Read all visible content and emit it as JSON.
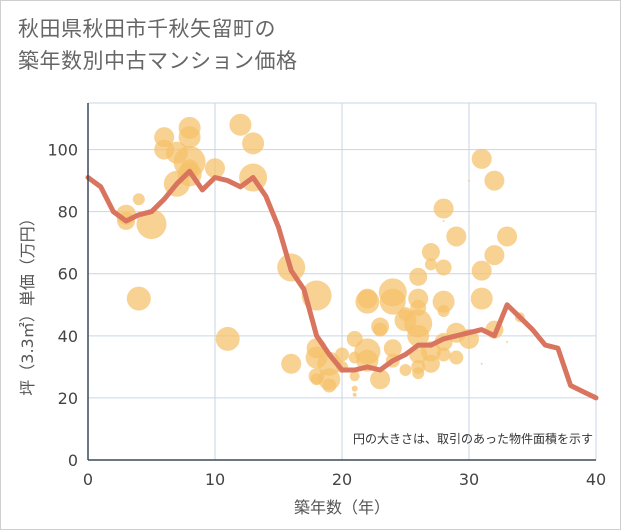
{
  "title_line1": "秋田県秋田市千秋矢留町の",
  "title_line2": "築年数別中古マンション価格",
  "note": "円の大きさは、取引のあった物件面積を示す",
  "colors": {
    "bubble": "#f5c06a",
    "line": "#d9745f",
    "grid": "#c9d6e3",
    "axis": "#3a4a5a"
  },
  "chart_data": {
    "type": "scatter",
    "xlabel": "築年数（年）",
    "ylabel": "坪（3.3㎡）単価（万円）",
    "xlim": [
      0,
      40
    ],
    "ylim": [
      0,
      115
    ],
    "xticks": [
      0,
      10,
      20,
      30,
      40
    ],
    "yticks": [
      0,
      20,
      40,
      60,
      80,
      100
    ],
    "bubbles": [
      {
        "x": 3,
        "y": 79,
        "s": 10
      },
      {
        "x": 3,
        "y": 77,
        "s": 9
      },
      {
        "x": 4,
        "y": 84,
        "s": 6
      },
      {
        "x": 5,
        "y": 76,
        "s": 15
      },
      {
        "x": 4,
        "y": 52,
        "s": 12
      },
      {
        "x": 6,
        "y": 104,
        "s": 10
      },
      {
        "x": 6,
        "y": 100,
        "s": 10
      },
      {
        "x": 7,
        "y": 99,
        "s": 11
      },
      {
        "x": 7,
        "y": 89,
        "s": 13
      },
      {
        "x": 8,
        "y": 107,
        "s": 11
      },
      {
        "x": 8,
        "y": 104,
        "s": 11
      },
      {
        "x": 8,
        "y": 96,
        "s": 16
      },
      {
        "x": 8,
        "y": 92,
        "s": 12
      },
      {
        "x": 8,
        "y": 94,
        "s": 9
      },
      {
        "x": 10,
        "y": 94,
        "s": 10
      },
      {
        "x": 11,
        "y": 39,
        "s": 12
      },
      {
        "x": 12,
        "y": 108,
        "s": 11
      },
      {
        "x": 13,
        "y": 102,
        "s": 11
      },
      {
        "x": 13,
        "y": 91,
        "s": 14
      },
      {
        "x": 16,
        "y": 62,
        "s": 14
      },
      {
        "x": 16,
        "y": 31,
        "s": 10
      },
      {
        "x": 18,
        "y": 53,
        "s": 15
      },
      {
        "x": 18,
        "y": 36,
        "s": 10
      },
      {
        "x": 18,
        "y": 33,
        "s": 11
      },
      {
        "x": 18,
        "y": 27,
        "s": 8
      },
      {
        "x": 18,
        "y": 26,
        "s": 6
      },
      {
        "x": 19,
        "y": 31,
        "s": 12
      },
      {
        "x": 19,
        "y": 26,
        "s": 11
      },
      {
        "x": 19,
        "y": 24,
        "s": 7
      },
      {
        "x": 20,
        "y": 34,
        "s": 7
      },
      {
        "x": 20,
        "y": 30,
        "s": 6
      },
      {
        "x": 21,
        "y": 39,
        "s": 8
      },
      {
        "x": 21,
        "y": 33,
        "s": 6
      },
      {
        "x": 21,
        "y": 27,
        "s": 5
      },
      {
        "x": 21,
        "y": 23,
        "s": 3
      },
      {
        "x": 21,
        "y": 21,
        "s": 2
      },
      {
        "x": 22,
        "y": 52,
        "s": 10
      },
      {
        "x": 22,
        "y": 51,
        "s": 12
      },
      {
        "x": 22,
        "y": 35,
        "s": 13
      },
      {
        "x": 22,
        "y": 32,
        "s": 11
      },
      {
        "x": 23,
        "y": 43,
        "s": 9
      },
      {
        "x": 23,
        "y": 42,
        "s": 7
      },
      {
        "x": 23,
        "y": 26,
        "s": 10
      },
      {
        "x": 24,
        "y": 54,
        "s": 14
      },
      {
        "x": 24,
        "y": 51,
        "s": 13
      },
      {
        "x": 24,
        "y": 36,
        "s": 9
      },
      {
        "x": 24,
        "y": 32,
        "s": 7
      },
      {
        "x": 25,
        "y": 47,
        "s": 7
      },
      {
        "x": 25,
        "y": 45,
        "s": 11
      },
      {
        "x": 25,
        "y": 29,
        "s": 6
      },
      {
        "x": 26,
        "y": 59,
        "s": 9
      },
      {
        "x": 26,
        "y": 52,
        "s": 10
      },
      {
        "x": 26,
        "y": 49,
        "s": 8
      },
      {
        "x": 26,
        "y": 44,
        "s": 14
      },
      {
        "x": 26,
        "y": 40,
        "s": 11
      },
      {
        "x": 26,
        "y": 34,
        "s": 9
      },
      {
        "x": 26,
        "y": 30,
        "s": 7
      },
      {
        "x": 26,
        "y": 28,
        "s": 6
      },
      {
        "x": 27,
        "y": 67,
        "s": 9
      },
      {
        "x": 27,
        "y": 63,
        "s": 6
      },
      {
        "x": 27,
        "y": 35,
        "s": 10
      },
      {
        "x": 27,
        "y": 31,
        "s": 9
      },
      {
        "x": 28,
        "y": 81,
        "s": 10
      },
      {
        "x": 28,
        "y": 62,
        "s": 8
      },
      {
        "x": 28,
        "y": 51,
        "s": 11
      },
      {
        "x": 28,
        "y": 48,
        "s": 6
      },
      {
        "x": 28,
        "y": 38,
        "s": 9
      },
      {
        "x": 28,
        "y": 34,
        "s": 7
      },
      {
        "x": 28,
        "y": 77,
        "s": 1
      },
      {
        "x": 29,
        "y": 72,
        "s": 10
      },
      {
        "x": 29,
        "y": 41,
        "s": 10
      },
      {
        "x": 29,
        "y": 33,
        "s": 7
      },
      {
        "x": 30,
        "y": 39,
        "s": 10
      },
      {
        "x": 30,
        "y": 90,
        "s": 1
      },
      {
        "x": 31,
        "y": 97,
        "s": 10
      },
      {
        "x": 31,
        "y": 61,
        "s": 10
      },
      {
        "x": 31,
        "y": 52,
        "s": 11
      },
      {
        "x": 31,
        "y": 31,
        "s": 1
      },
      {
        "x": 32,
        "y": 90,
        "s": 10
      },
      {
        "x": 32,
        "y": 66,
        "s": 10
      },
      {
        "x": 32,
        "y": 42,
        "s": 9
      },
      {
        "x": 33,
        "y": 72,
        "s": 10
      },
      {
        "x": 33,
        "y": 38,
        "s": 1
      },
      {
        "x": 34,
        "y": 46,
        "s": 5
      }
    ],
    "series": [
      {
        "x": [
          0,
          1,
          2,
          3,
          4,
          5,
          6,
          7,
          8,
          9,
          10,
          11,
          12,
          13,
          14,
          15,
          16,
          17,
          18,
          19,
          20,
          21,
          22,
          23,
          24,
          25,
          26,
          27,
          28,
          29,
          30,
          31,
          32,
          33,
          34,
          35,
          36,
          37,
          38,
          39,
          40
        ],
        "y": [
          91,
          88,
          80,
          77,
          79,
          80,
          84,
          89,
          93,
          87,
          91,
          90,
          88,
          91,
          85,
          75,
          61,
          55,
          40,
          34,
          29,
          29,
          30,
          29,
          32,
          34,
          37,
          37,
          39,
          40,
          41,
          42,
          40,
          50,
          46,
          42,
          37,
          36,
          24,
          22,
          20
        ]
      }
    ]
  }
}
